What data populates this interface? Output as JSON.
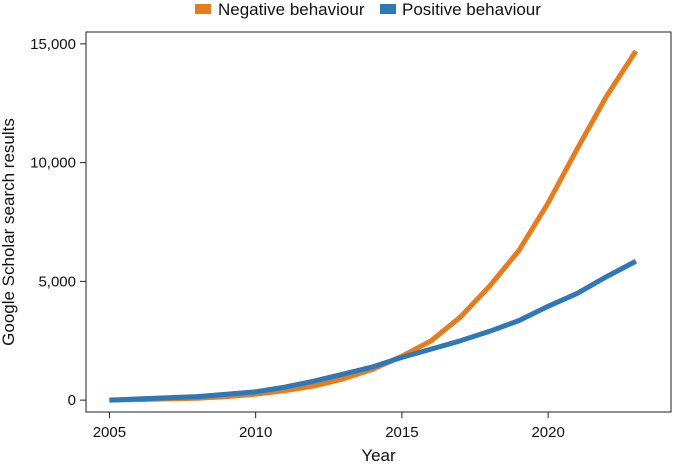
{
  "chart_data": {
    "type": "line",
    "title": "",
    "xlabel": "Year",
    "ylabel": "Google Scholar search results",
    "xlim": [
      2004.2,
      2024.2
    ],
    "ylim": [
      -500,
      15500
    ],
    "xticks": [
      2005,
      2010,
      2015,
      2020
    ],
    "xtick_labels": [
      "2005",
      "2010",
      "2015",
      "2020"
    ],
    "yticks": [
      0,
      5000,
      10000,
      15000
    ],
    "ytick_labels": [
      "0",
      "5,000",
      "10,000",
      "15,000"
    ],
    "grid": false,
    "legend_position": "top-center",
    "series": [
      {
        "name": "Negative behaviour",
        "color": "#e87b1c",
        "x": [
          2005,
          2006,
          2007,
          2008,
          2009,
          2010,
          2011,
          2012,
          2013,
          2014,
          2015,
          2016,
          2017,
          2018,
          2019,
          2020,
          2021,
          2022,
          2023
        ],
        "values": [
          0,
          20,
          50,
          80,
          150,
          250,
          400,
          600,
          900,
          1300,
          1850,
          2500,
          3500,
          4800,
          6300,
          8300,
          10600,
          12800,
          14700
        ]
      },
      {
        "name": "Positive behaviour",
        "color": "#2e78b7",
        "x": [
          2005,
          2006,
          2007,
          2008,
          2009,
          2010,
          2011,
          2012,
          2013,
          2014,
          2015,
          2016,
          2017,
          2018,
          2019,
          2020,
          2021,
          2022,
          2023
        ],
        "values": [
          0,
          50,
          100,
          150,
          250,
          350,
          550,
          800,
          1100,
          1400,
          1800,
          2150,
          2500,
          2900,
          3350,
          3950,
          4500,
          5200,
          5850
        ]
      }
    ]
  }
}
